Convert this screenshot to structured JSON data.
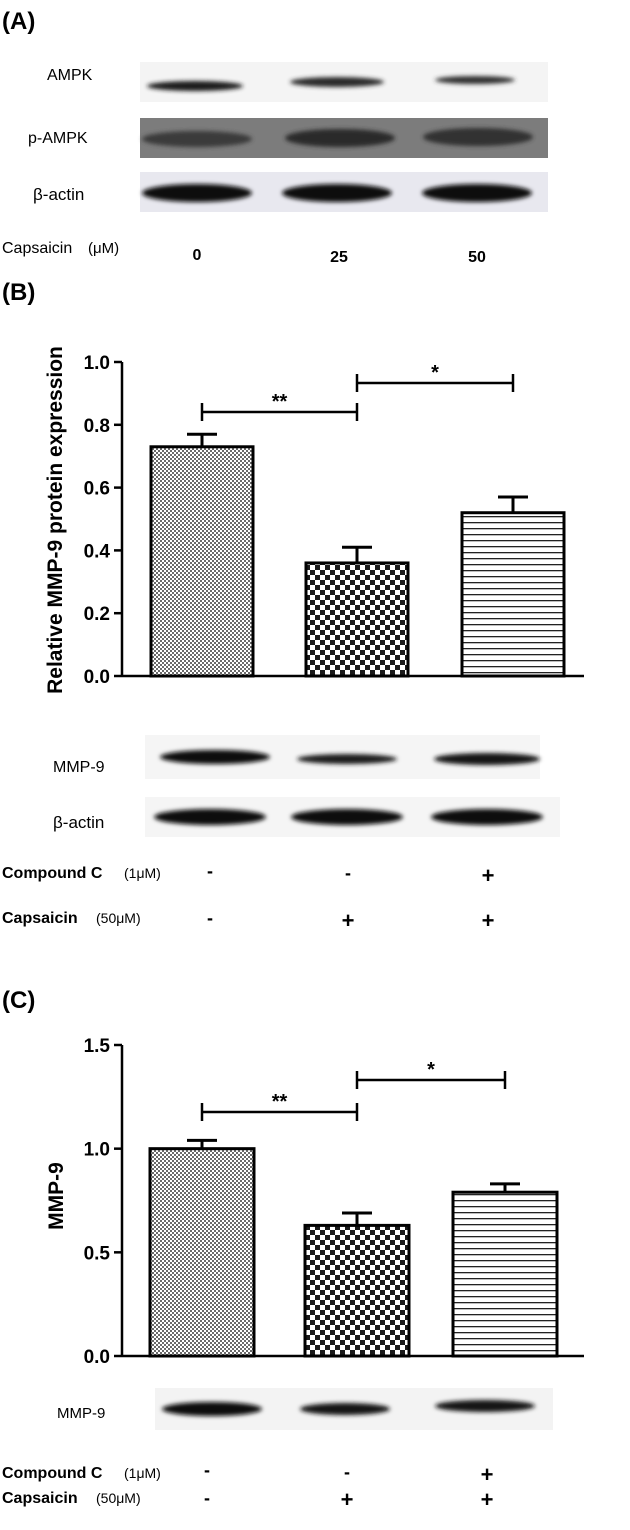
{
  "panel_a": {
    "label": "(A)",
    "blots": [
      "AMPK",
      "p-AMPK",
      "β-actin"
    ],
    "condition": {
      "name": "Capsaicin",
      "unit": "(μM)",
      "values": [
        "0",
        "25",
        "50"
      ]
    }
  },
  "panel_b": {
    "label": "(B)",
    "blots": [
      "MMP-9",
      "β-actin"
    ],
    "treatments": [
      {
        "name": "Compound C",
        "unit": "(1μM)",
        "values": [
          "-",
          "-",
          "+"
        ]
      },
      {
        "name": "Capsaicin",
        "unit": "(50μM)",
        "values": [
          "-",
          "+",
          "+"
        ]
      }
    ]
  },
  "panel_c": {
    "label": "(C)",
    "blots": [
      "MMP-9"
    ],
    "treatments": [
      {
        "name": "Compound C",
        "unit": "(1μM)",
        "values": [
          "-",
          "-",
          "+"
        ]
      },
      {
        "name": "Capsaicin",
        "unit": "(50μM)",
        "values": [
          "-",
          "+",
          "+"
        ]
      }
    ]
  },
  "chart_data": [
    {
      "type": "bar",
      "panel": "B",
      "ylabel": "Relative MMP-9 protein expression",
      "ylim": [
        0,
        1.0
      ],
      "yticks": [
        "0.0",
        "0.2",
        "0.4",
        "0.6",
        "0.8",
        "1.0"
      ],
      "values": [
        0.73,
        0.36,
        0.52
      ],
      "errors": [
        0.04,
        0.05,
        0.05
      ],
      "patterns": [
        "fine-check",
        "check",
        "stripes"
      ],
      "significance": [
        {
          "from": 0,
          "to": 1,
          "label": "**"
        },
        {
          "from": 1,
          "to": 2,
          "label": "*"
        }
      ]
    },
    {
      "type": "bar",
      "panel": "C",
      "ylabel": "MMP-9",
      "ylim": [
        0,
        1.5
      ],
      "yticks": [
        "0.0",
        "0.5",
        "1.0",
        "1.5"
      ],
      "values": [
        1.0,
        0.63,
        0.79
      ],
      "errors": [
        0.04,
        0.06,
        0.04
      ],
      "patterns": [
        "fine-check",
        "check",
        "stripes"
      ],
      "significance": [
        {
          "from": 0,
          "to": 1,
          "label": "**"
        },
        {
          "from": 1,
          "to": 2,
          "label": "*"
        }
      ]
    }
  ]
}
